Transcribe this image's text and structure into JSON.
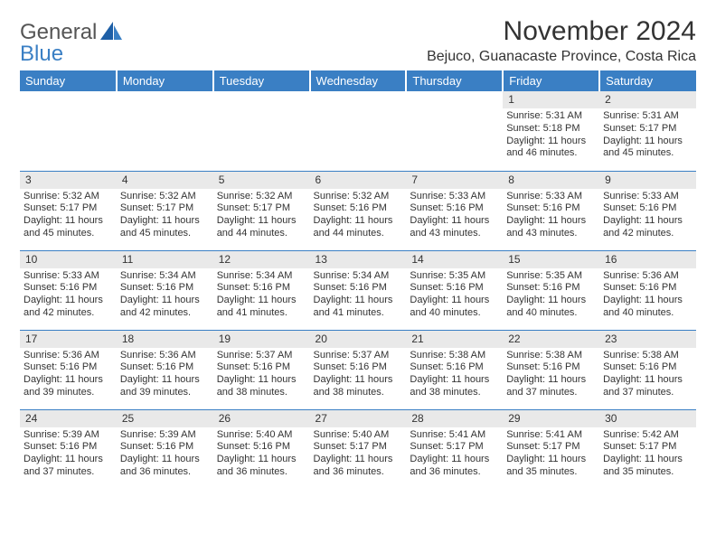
{
  "logo": {
    "main": "General",
    "sub": "Blue"
  },
  "title": "November 2024",
  "location": "Bejuco, Guanacaste Province, Costa Rica",
  "colors": {
    "header_bg": "#3a7fc4",
    "header_text": "#ffffff",
    "daybar_bg": "#e9e9e9",
    "rule": "#3a7fc4",
    "logo_gray": "#555555",
    "logo_blue": "#3a7fc4"
  },
  "weekdays": [
    "Sunday",
    "Monday",
    "Tuesday",
    "Wednesday",
    "Thursday",
    "Friday",
    "Saturday"
  ],
  "weeks": [
    [
      null,
      null,
      null,
      null,
      null,
      {
        "n": "1",
        "sunrise": "5:31 AM",
        "sunset": "5:18 PM",
        "daylight": "11 hours and 46 minutes."
      },
      {
        "n": "2",
        "sunrise": "5:31 AM",
        "sunset": "5:17 PM",
        "daylight": "11 hours and 45 minutes."
      }
    ],
    [
      {
        "n": "3",
        "sunrise": "5:32 AM",
        "sunset": "5:17 PM",
        "daylight": "11 hours and 45 minutes."
      },
      {
        "n": "4",
        "sunrise": "5:32 AM",
        "sunset": "5:17 PM",
        "daylight": "11 hours and 45 minutes."
      },
      {
        "n": "5",
        "sunrise": "5:32 AM",
        "sunset": "5:17 PM",
        "daylight": "11 hours and 44 minutes."
      },
      {
        "n": "6",
        "sunrise": "5:32 AM",
        "sunset": "5:16 PM",
        "daylight": "11 hours and 44 minutes."
      },
      {
        "n": "7",
        "sunrise": "5:33 AM",
        "sunset": "5:16 PM",
        "daylight": "11 hours and 43 minutes."
      },
      {
        "n": "8",
        "sunrise": "5:33 AM",
        "sunset": "5:16 PM",
        "daylight": "11 hours and 43 minutes."
      },
      {
        "n": "9",
        "sunrise": "5:33 AM",
        "sunset": "5:16 PM",
        "daylight": "11 hours and 42 minutes."
      }
    ],
    [
      {
        "n": "10",
        "sunrise": "5:33 AM",
        "sunset": "5:16 PM",
        "daylight": "11 hours and 42 minutes."
      },
      {
        "n": "11",
        "sunrise": "5:34 AM",
        "sunset": "5:16 PM",
        "daylight": "11 hours and 42 minutes."
      },
      {
        "n": "12",
        "sunrise": "5:34 AM",
        "sunset": "5:16 PM",
        "daylight": "11 hours and 41 minutes."
      },
      {
        "n": "13",
        "sunrise": "5:34 AM",
        "sunset": "5:16 PM",
        "daylight": "11 hours and 41 minutes."
      },
      {
        "n": "14",
        "sunrise": "5:35 AM",
        "sunset": "5:16 PM",
        "daylight": "11 hours and 40 minutes."
      },
      {
        "n": "15",
        "sunrise": "5:35 AM",
        "sunset": "5:16 PM",
        "daylight": "11 hours and 40 minutes."
      },
      {
        "n": "16",
        "sunrise": "5:36 AM",
        "sunset": "5:16 PM",
        "daylight": "11 hours and 40 minutes."
      }
    ],
    [
      {
        "n": "17",
        "sunrise": "5:36 AM",
        "sunset": "5:16 PM",
        "daylight": "11 hours and 39 minutes."
      },
      {
        "n": "18",
        "sunrise": "5:36 AM",
        "sunset": "5:16 PM",
        "daylight": "11 hours and 39 minutes."
      },
      {
        "n": "19",
        "sunrise": "5:37 AM",
        "sunset": "5:16 PM",
        "daylight": "11 hours and 38 minutes."
      },
      {
        "n": "20",
        "sunrise": "5:37 AM",
        "sunset": "5:16 PM",
        "daylight": "11 hours and 38 minutes."
      },
      {
        "n": "21",
        "sunrise": "5:38 AM",
        "sunset": "5:16 PM",
        "daylight": "11 hours and 38 minutes."
      },
      {
        "n": "22",
        "sunrise": "5:38 AM",
        "sunset": "5:16 PM",
        "daylight": "11 hours and 37 minutes."
      },
      {
        "n": "23",
        "sunrise": "5:38 AM",
        "sunset": "5:16 PM",
        "daylight": "11 hours and 37 minutes."
      }
    ],
    [
      {
        "n": "24",
        "sunrise": "5:39 AM",
        "sunset": "5:16 PM",
        "daylight": "11 hours and 37 minutes."
      },
      {
        "n": "25",
        "sunrise": "5:39 AM",
        "sunset": "5:16 PM",
        "daylight": "11 hours and 36 minutes."
      },
      {
        "n": "26",
        "sunrise": "5:40 AM",
        "sunset": "5:16 PM",
        "daylight": "11 hours and 36 minutes."
      },
      {
        "n": "27",
        "sunrise": "5:40 AM",
        "sunset": "5:17 PM",
        "daylight": "11 hours and 36 minutes."
      },
      {
        "n": "28",
        "sunrise": "5:41 AM",
        "sunset": "5:17 PM",
        "daylight": "11 hours and 36 minutes."
      },
      {
        "n": "29",
        "sunrise": "5:41 AM",
        "sunset": "5:17 PM",
        "daylight": "11 hours and 35 minutes."
      },
      {
        "n": "30",
        "sunrise": "5:42 AM",
        "sunset": "5:17 PM",
        "daylight": "11 hours and 35 minutes."
      }
    ]
  ],
  "labels": {
    "sunrise": "Sunrise: ",
    "sunset": "Sunset: ",
    "daylight": "Daylight: "
  }
}
